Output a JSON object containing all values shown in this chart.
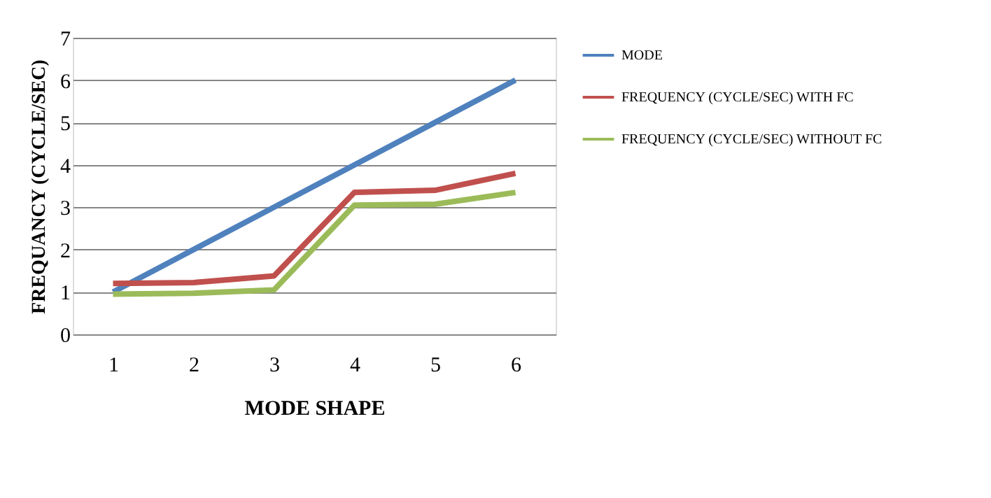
{
  "chart_data": {
    "type": "line",
    "xlabel": "MODE SHAPE",
    "ylabel": "FREQUANCY (CYCLE/SEC)",
    "categories": [
      "1",
      "2",
      "3",
      "4",
      "5",
      "6"
    ],
    "series": [
      {
        "name": "MODE",
        "color": "#4f81bd",
        "values": [
          1,
          2,
          3,
          4,
          5,
          6
        ]
      },
      {
        "name": "FREQUENCY (CYCLE/SEC) WITH FC",
        "color": "#c0504d",
        "values": [
          1.2,
          1.22,
          1.38,
          3.35,
          3.4,
          3.8
        ]
      },
      {
        "name": "FREQUENCY (CYCLE/SEC) WITHOUT FC",
        "color": "#9bbb59",
        "values": [
          0.95,
          0.97,
          1.05,
          3.05,
          3.07,
          3.35
        ]
      }
    ],
    "ylim": [
      0,
      7
    ],
    "yticks": [
      0,
      1,
      2,
      3,
      4,
      5,
      6,
      7
    ],
    "grid": "y",
    "legend": "right",
    "marker": "none",
    "line_style": "solid"
  }
}
